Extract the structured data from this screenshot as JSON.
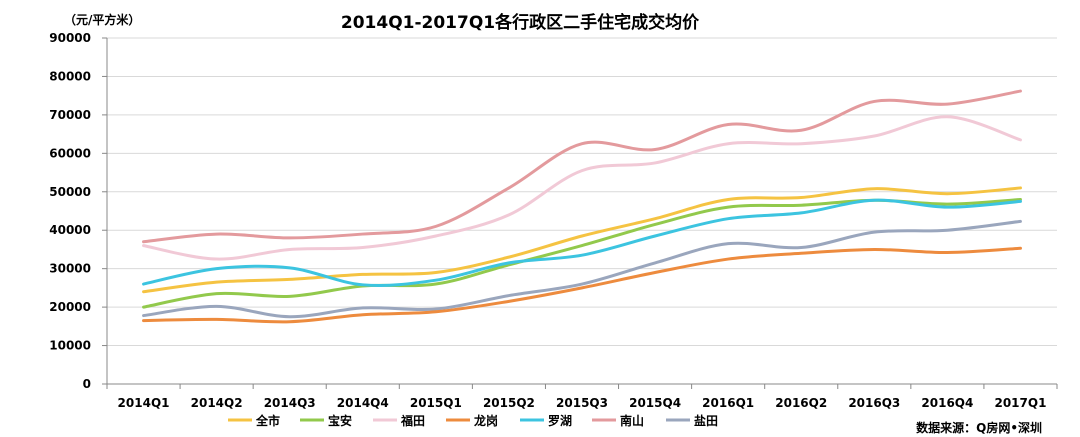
{
  "chart_data": {
    "type": "line",
    "title": "2014Q1-2017Q1各行政区二手住宅成交均价",
    "unit_label": "（元/平方米）",
    "source": "数据来源：Q房网•深圳",
    "xlabel": "",
    "ylabel": "",
    "ylim": [
      0,
      90000
    ],
    "yticks": [
      0,
      10000,
      20000,
      30000,
      40000,
      50000,
      60000,
      70000,
      80000,
      90000
    ],
    "grid": true,
    "legend_position": "bottom",
    "categories": [
      "2014Q1",
      "2014Q2",
      "2014Q3",
      "2014Q4",
      "2015Q1",
      "2015Q2",
      "2015Q3",
      "2015Q4",
      "2016Q1",
      "2016Q2",
      "2016Q3",
      "2016Q4",
      "2017Q1"
    ],
    "series": [
      {
        "name": "全市",
        "color": "#F5C342",
        "values": [
          24000,
          26500,
          27200,
          28500,
          29000,
          33000,
          38500,
          43000,
          48000,
          48500,
          50800,
          49500,
          51000
        ]
      },
      {
        "name": "宝安",
        "color": "#92C94C",
        "values": [
          20000,
          23500,
          22800,
          25500,
          26000,
          31000,
          36000,
          41500,
          46000,
          46500,
          47800,
          46800,
          48000
        ]
      },
      {
        "name": "福田",
        "color": "#F1C9D6",
        "values": [
          36000,
          32500,
          35000,
          35500,
          38500,
          44000,
          55500,
          57500,
          62500,
          62500,
          64500,
          69500,
          63500
        ]
      },
      {
        "name": "龙岗",
        "color": "#ED8B3E",
        "values": [
          16500,
          16800,
          16200,
          18000,
          18800,
          21500,
          25000,
          29000,
          32500,
          34000,
          35000,
          34200,
          35300
        ]
      },
      {
        "name": "罗湖",
        "color": "#3CC4E0",
        "values": [
          26000,
          30000,
          30200,
          25800,
          27000,
          31500,
          33500,
          38500,
          43000,
          44500,
          47800,
          46000,
          47500
        ]
      },
      {
        "name": "南山",
        "color": "#E39A9D",
        "values": [
          37000,
          39000,
          38000,
          39000,
          41000,
          51000,
          62500,
          61000,
          67500,
          66000,
          73500,
          72800,
          76200
        ]
      },
      {
        "name": "盐田",
        "color": "#9AA6BD",
        "values": [
          17800,
          20200,
          17500,
          19800,
          19500,
          23000,
          26000,
          31500,
          36500,
          35500,
          39500,
          40000,
          42300
        ]
      }
    ]
  }
}
